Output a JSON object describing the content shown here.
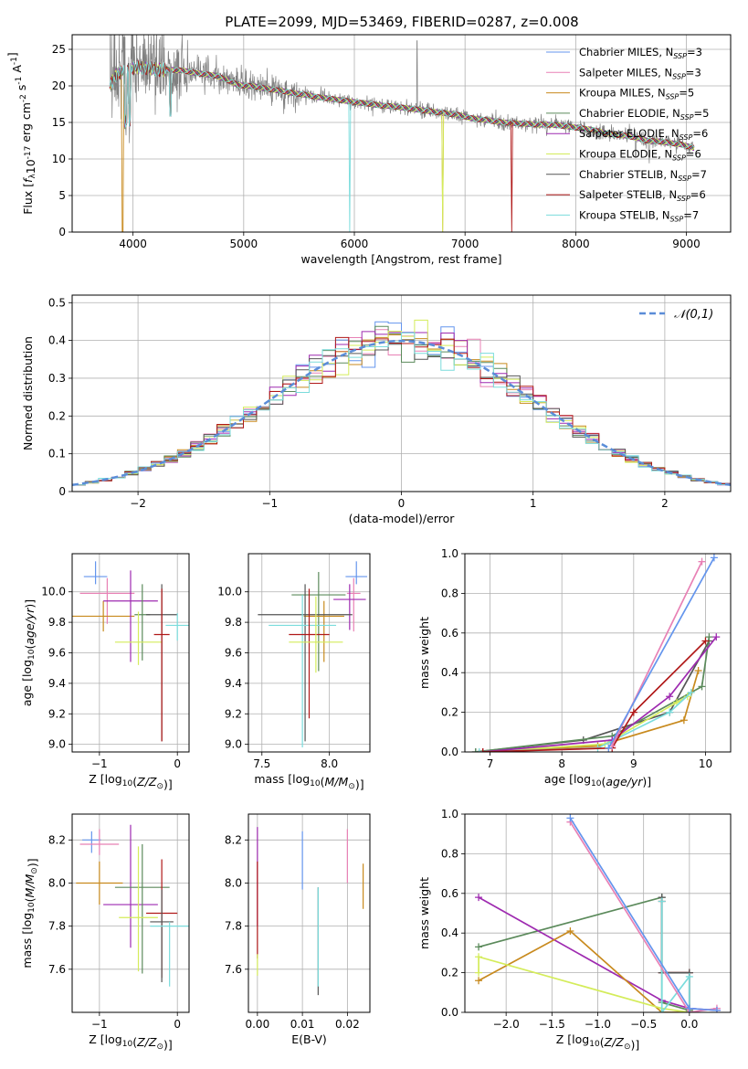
{
  "figure": {
    "title": "PLATE=2099, MJD=53469, FIBERID=0287, z=0.008"
  },
  "models": [
    {
      "name": "Chabrier MILES",
      "nssp": "3",
      "color": "#6495ED"
    },
    {
      "name": "Salpeter MILES",
      "nssp": "3",
      "color": "#E881B5"
    },
    {
      "name": "Kroupa MILES",
      "nssp": "5",
      "color": "#C88A1E"
    },
    {
      "name": "Chabrier ELODIE",
      "nssp": "5",
      "color": "#5B8A5B"
    },
    {
      "name": "Salpeter ELODIE",
      "nssp": "6",
      "color": "#9E2AB0"
    },
    {
      "name": "Kroupa ELODIE",
      "nssp": "6",
      "color": "#D4EC5A"
    },
    {
      "name": "Chabrier STELIB",
      "nssp": "7",
      "color": "#555555"
    },
    {
      "name": "Salpeter STELIB",
      "nssp": "6",
      "color": "#B01818"
    },
    {
      "name": "Kroupa STELIB",
      "nssp": "7",
      "color": "#7ADCDC"
    }
  ],
  "chart_data": [
    {
      "id": "spectrum",
      "type": "line",
      "xlabel": "wavelength [Angstrom, rest frame]",
      "ylabel": "Flux [f_λ10^-17 erg cm^-2 s^-1 A^-1]",
      "xlim": [
        3450,
        9400
      ],
      "ylim": [
        0,
        27
      ],
      "xticks": [
        4000,
        5000,
        6000,
        7000,
        8000,
        9000
      ],
      "yticks": [
        0,
        5,
        10,
        15,
        20,
        25
      ],
      "legend_position": "top-right",
      "data_color": "#808080",
      "x": [
        3790,
        3850,
        3950,
        4050,
        4150,
        4250,
        4350,
        4450,
        4550,
        4650,
        4750,
        4850,
        4950,
        5050,
        5150,
        5250,
        5350,
        5450,
        5550,
        5650,
        5750,
        5850,
        5950,
        6050,
        6150,
        6250,
        6350,
        6450,
        6550,
        6650,
        6750,
        6850,
        6950,
        7050,
        7150,
        7250,
        7350,
        7450,
        7550,
        7650,
        7750,
        7850,
        7950,
        8050,
        8150,
        8250,
        8350,
        8450,
        8550,
        8650,
        8750,
        8850,
        8950,
        9070
      ],
      "y": [
        20.0,
        21.5,
        22.3,
        22.5,
        22.4,
        22.2,
        22.2,
        22.1,
        21.8,
        21.6,
        21.4,
        20.8,
        20.1,
        20.0,
        19.8,
        19.5,
        19.3,
        19.0,
        18.8,
        18.5,
        18.3,
        18.1,
        17.9,
        17.7,
        17.5,
        17.3,
        17.2,
        17.0,
        16.8,
        16.6,
        16.4,
        16.2,
        16.0,
        15.6,
        15.4,
        15.2,
        15.0,
        14.9,
        14.8,
        14.7,
        14.7,
        14.6,
        14.4,
        14.2,
        14.0,
        13.6,
        13.3,
        13.2,
        12.9,
        12.5,
        12.4,
        12.2,
        12.0,
        11.5
      ]
    },
    {
      "id": "residuals",
      "type": "histogram",
      "xlabel": "(data-model)/error",
      "ylabel": "Normed distribution",
      "xlim": [
        -2.5,
        2.5
      ],
      "ylim": [
        0,
        0.52
      ],
      "xticks": [
        -2,
        -1,
        0,
        1,
        2
      ],
      "yticks": [
        0.0,
        0.1,
        0.2,
        0.3,
        0.4,
        0.5
      ],
      "reference_label": "𝒩(0,1)",
      "legend_position": "top-right",
      "bin_width": 0.1
    },
    {
      "id": "age-vs-z",
      "type": "errorbar",
      "xlabel": "Z [log10(Z/Z⊙)]",
      "ylabel": "age  [log10(age/yr)]",
      "xlim": [
        -1.35,
        0.15
      ],
      "ylim": [
        8.95,
        10.25
      ],
      "xticks": [
        -1,
        0
      ],
      "yticks": [
        9.0,
        9.2,
        9.4,
        9.6,
        9.8,
        10.0
      ],
      "points": [
        {
          "model": 0,
          "x": -1.05,
          "xerr": 0.15,
          "y": 10.1,
          "yerr": [
            0.05,
            0.1
          ]
        },
        {
          "model": 1,
          "x": -0.9,
          "xerr": 0.35,
          "y": 9.99,
          "yerr": [
            0.2,
            0.1
          ]
        },
        {
          "model": 2,
          "x": -0.95,
          "xerr": 0.4,
          "y": 9.84,
          "yerr": [
            0.1,
            0.1
          ]
        },
        {
          "model": 4,
          "x": -0.6,
          "xerr": 0.35,
          "y": 9.94,
          "yerr": [
            0.4,
            0.2
          ]
        },
        {
          "model": 3,
          "x": -0.45,
          "xerr": 0.1,
          "y": 9.85,
          "yerr": [
            0.3,
            0.2
          ]
        },
        {
          "model": 5,
          "x": -0.5,
          "xerr": 0.3,
          "y": 9.67,
          "yerr": [
            0.15,
            0.2
          ]
        },
        {
          "model": 6,
          "x": -0.2,
          "xerr": 0.2,
          "y": 9.85,
          "yerr": [
            0.83,
            0.2
          ]
        },
        {
          "model": 7,
          "x": -0.2,
          "xerr": 0.1,
          "y": 9.72,
          "yerr": [
            0.7,
            0.3
          ]
        },
        {
          "model": 8,
          "x": 0.0,
          "xerr": 0.15,
          "y": 9.78,
          "yerr": [
            0.1,
            0.08
          ]
        }
      ]
    },
    {
      "id": "age-vs-mass",
      "type": "errorbar",
      "xlabel": "mass [log10(M/M⊙)]",
      "ylabel": "",
      "xlim": [
        7.4,
        8.3
      ],
      "ylim": [
        8.95,
        10.25
      ],
      "xticks": [
        7.5,
        8.0
      ],
      "yticks": [
        9.0,
        9.2,
        9.4,
        9.6,
        9.8,
        10.0
      ],
      "points": [
        {
          "model": 0,
          "x": 8.2,
          "xerr": 0.08,
          "y": 10.1,
          "yerr": [
            0.05,
            0.1
          ]
        },
        {
          "model": 1,
          "x": 8.18,
          "xerr": 0.05,
          "y": 9.99,
          "yerr": [
            0.25,
            0.1
          ]
        },
        {
          "model": 4,
          "x": 8.15,
          "xerr": 0.12,
          "y": 9.95,
          "yerr": [
            0.2,
            0.1
          ]
        },
        {
          "model": 3,
          "x": 7.92,
          "xerr": 0.2,
          "y": 9.98,
          "yerr": [
            0.5,
            0.15
          ]
        },
        {
          "model": 2,
          "x": 7.96,
          "xerr": 0.15,
          "y": 9.84,
          "yerr": [
            0.3,
            0.1
          ]
        },
        {
          "model": 6,
          "x": 7.82,
          "xerr": 0.35,
          "y": 9.85,
          "yerr": [
            0.83,
            0.2
          ]
        },
        {
          "model": 8,
          "x": 7.8,
          "xerr": 0.25,
          "y": 9.78,
          "yerr": [
            0.8,
            0.2
          ]
        },
        {
          "model": 7,
          "x": 7.85,
          "xerr": 0.15,
          "y": 9.72,
          "yerr": [
            0.55,
            0.3
          ]
        },
        {
          "model": 5,
          "x": 7.9,
          "xerr": 0.2,
          "y": 9.67,
          "yerr": [
            0.2,
            0.3
          ]
        }
      ]
    },
    {
      "id": "weight-vs-age",
      "type": "line",
      "xlabel": "age  [log10(age/yr)]",
      "ylabel": "mass weight",
      "xlim": [
        6.65,
        10.35
      ],
      "ylim": [
        0,
        1.0
      ],
      "xticks": [
        7,
        8,
        9,
        10
      ],
      "yticks": [
        0.0,
        0.2,
        0.4,
        0.6,
        0.8,
        1.0
      ],
      "series": [
        {
          "model": 6,
          "x": [
            6.8,
            8.3,
            9.5,
            10.05
          ],
          "y": [
            0.0,
            0.06,
            0.2,
            0.56
          ]
        },
        {
          "model": 3,
          "x": [
            6.8,
            8.7,
            9.95,
            10.05
          ],
          "y": [
            0.0,
            0.08,
            0.33,
            0.58
          ]
        },
        {
          "model": 2,
          "x": [
            6.9,
            8.5,
            9.7,
            9.9
          ],
          "y": [
            0.0,
            0.03,
            0.16,
            0.41
          ]
        },
        {
          "model": 5,
          "x": [
            6.9,
            8.6,
            9.6,
            9.75
          ],
          "y": [
            0.0,
            0.04,
            0.25,
            0.28
          ]
        },
        {
          "model": 8,
          "x": [
            6.85,
            8.5,
            9.5,
            9.8
          ],
          "y": [
            0.0,
            0.02,
            0.2,
            0.3
          ]
        },
        {
          "model": 4,
          "x": [
            6.9,
            8.7,
            9.5,
            10.15
          ],
          "y": [
            0.0,
            0.06,
            0.28,
            0.58
          ]
        },
        {
          "model": 7,
          "x": [
            6.9,
            8.7,
            9.0,
            10.0
          ],
          "y": [
            0.0,
            0.02,
            0.2,
            0.56
          ]
        },
        {
          "model": 1,
          "x": [
            8.7,
            9.95
          ],
          "y": [
            0.03,
            0.96
          ]
        },
        {
          "model": 0,
          "x": [
            8.65,
            10.12
          ],
          "y": [
            0.02,
            0.98
          ]
        }
      ]
    },
    {
      "id": "mass-vs-z",
      "type": "errorbar",
      "xlabel": "Z [log10(Z/Z⊙)]",
      "ylabel": "mass [log10(M/M⊙)]",
      "xlim": [
        -1.35,
        0.15
      ],
      "ylim": [
        7.4,
        8.32
      ],
      "xticks": [
        -1,
        0
      ],
      "yticks": [
        7.6,
        7.8,
        8.0,
        8.2
      ],
      "points": [
        {
          "model": 0,
          "x": -1.1,
          "xerr": 0.12,
          "y": 8.2,
          "yerr": [
            0.06,
            0.04
          ]
        },
        {
          "model": 1,
          "x": -1.0,
          "xerr": 0.25,
          "y": 8.18,
          "yerr": [
            0.05,
            0.07
          ]
        },
        {
          "model": 2,
          "x": -1.0,
          "xerr": 0.3,
          "y": 8.0,
          "yerr": [
            0.1,
            0.1
          ]
        },
        {
          "model": 4,
          "x": -0.6,
          "xerr": 0.35,
          "y": 7.9,
          "yerr": [
            0.2,
            0.37
          ]
        },
        {
          "model": 3,
          "x": -0.45,
          "xerr": 0.35,
          "y": 7.98,
          "yerr": [
            0.4,
            0.2
          ]
        },
        {
          "model": 5,
          "x": -0.5,
          "xerr": 0.25,
          "y": 7.84,
          "yerr": [
            0.25,
            0.33
          ]
        },
        {
          "model": 7,
          "x": -0.2,
          "xerr": 0.2,
          "y": 7.86,
          "yerr": [
            0.3,
            0.25
          ]
        },
        {
          "model": 6,
          "x": -0.2,
          "xerr": 0.15,
          "y": 7.82,
          "yerr": [
            0.28,
            0.15
          ]
        },
        {
          "model": 8,
          "x": -0.1,
          "xerr": 0.25,
          "y": 7.8,
          "yerr": [
            0.28,
            0.02
          ]
        }
      ]
    },
    {
      "id": "mass-vs-ebv",
      "type": "errorbar",
      "xlabel": "E(B-V)",
      "ylabel": "",
      "xlim": [
        -0.002,
        0.025
      ],
      "ylim": [
        7.4,
        8.32
      ],
      "xticks": [
        0.0,
        0.01,
        0.02
      ],
      "yticks": [
        7.6,
        7.8,
        8.0,
        8.2
      ],
      "points": [
        {
          "model": 0,
          "x": 0.01,
          "xerr": 0,
          "y": 8.12,
          "yerr": [
            0.15,
            0.12
          ]
        },
        {
          "model": 1,
          "x": 0.02,
          "xerr": 0,
          "y": 8.15,
          "yerr": [
            0.15,
            0.1
          ]
        },
        {
          "model": 2,
          "x": 0.0235,
          "xerr": 0,
          "y": 7.98,
          "yerr": [
            0.1,
            0.11
          ]
        },
        {
          "model": 4,
          "x": 0.0,
          "xerr": 0,
          "y": 8.1,
          "yerr": [
            0.3,
            0.16
          ]
        },
        {
          "model": 6,
          "x": 0.0135,
          "xerr": 0,
          "y": 7.72,
          "yerr": [
            0.24,
            0.26
          ]
        },
        {
          "model": 8,
          "x": 0.0135,
          "xerr": 0,
          "y": 7.72,
          "yerr": [
            0.2,
            0.26
          ]
        },
        {
          "model": 7,
          "x": 0.0,
          "xerr": 0,
          "y": 7.9,
          "yerr": [
            0.25,
            0.2
          ]
        },
        {
          "model": 5,
          "x": 0.0,
          "xerr": 0,
          "y": 7.62,
          "yerr": [
            0.05,
            0.05
          ]
        }
      ]
    },
    {
      "id": "weight-vs-z",
      "type": "line",
      "xlabel": "Z [log10(Z/Z⊙)]",
      "ylabel": "mass weight",
      "xlim": [
        -2.45,
        0.45
      ],
      "ylim": [
        0,
        1.0
      ],
      "xticks": [
        -2.0,
        -1.5,
        -1.0,
        -0.5,
        0.0
      ],
      "yticks": [
        0.0,
        0.2,
        0.4,
        0.6,
        0.8,
        1.0
      ],
      "series": [
        {
          "model": 3,
          "x": [
            -2.3,
            -0.3,
            -0.3,
            0.0
          ],
          "y": [
            0.33,
            0.58,
            0.05,
            0.01
          ]
        },
        {
          "model": 4,
          "x": [
            -2.3,
            -0.3,
            0.0,
            0.3
          ],
          "y": [
            0.58,
            0.06,
            0.02,
            0.01
          ]
        },
        {
          "model": 2,
          "x": [
            -2.3,
            -1.3,
            -0.3,
            0.0
          ],
          "y": [
            0.16,
            0.41,
            0.0,
            0.0
          ]
        },
        {
          "model": 5,
          "x": [
            -2.3,
            -2.3,
            -0.3,
            0.0
          ],
          "y": [
            0.2,
            0.28,
            0.02,
            0.0
          ]
        },
        {
          "model": 7,
          "x": [
            -0.3,
            -0.3,
            0.0,
            0.0
          ],
          "y": [
            0.56,
            0.2,
            0.2,
            0.0
          ]
        },
        {
          "model": 6,
          "x": [
            -0.3,
            -0.3,
            0.0,
            0.0
          ],
          "y": [
            0.58,
            0.2,
            0.2,
            0.0
          ]
        },
        {
          "model": 8,
          "x": [
            -0.3,
            -0.3,
            0.0,
            0.0
          ],
          "y": [
            0.56,
            0.0,
            0.18,
            0.0
          ]
        },
        {
          "model": 1,
          "x": [
            -1.3,
            0.0,
            0.3
          ],
          "y": [
            0.96,
            0.0,
            0.02
          ]
        },
        {
          "model": 0,
          "x": [
            -1.3,
            0.0,
            0.3
          ],
          "y": [
            0.98,
            0.02,
            0.01
          ]
        }
      ]
    }
  ]
}
